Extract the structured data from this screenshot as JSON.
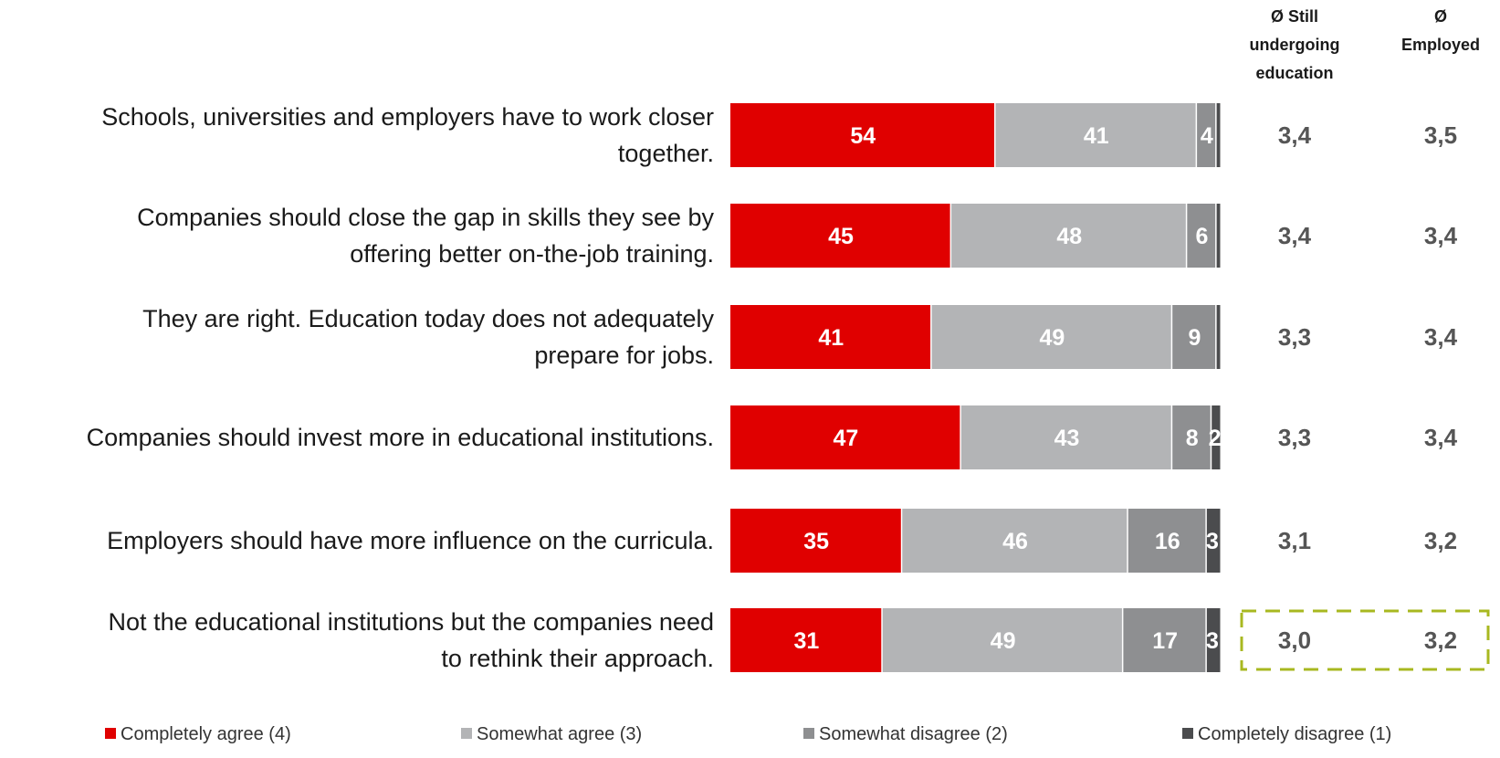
{
  "chart_data": {
    "type": "bar",
    "orientation": "horizontal",
    "stacked": true,
    "unit": "%",
    "categories": [
      [
        "Schools, universities  and employers  have to work closer",
        "together."
      ],
      [
        "Companies  should close the gap in skills they see by",
        "offering better  on-the-job training."
      ],
      [
        "They are right.  Education today does not adequately",
        "prepare  for jobs."
      ],
      [
        "Companies  should invest more in educational institutions."
      ],
      [
        "Employers  should have more influence on the curricula."
      ],
      [
        "Not the educational institutions but the companies need",
        "to rethink their approach."
      ]
    ],
    "series": [
      {
        "name": "Completely agree (4)",
        "color": "#e00000",
        "values": [
          54,
          45,
          41,
          47,
          35,
          31
        ]
      },
      {
        "name": "Somewhat agree (3)",
        "color": "#b3b4b6",
        "values": [
          41,
          48,
          49,
          43,
          46,
          49
        ]
      },
      {
        "name": "Somewhat disagree (2)",
        "color": "#8e8f91",
        "values": [
          4,
          6,
          9,
          8,
          16,
          17
        ]
      },
      {
        "name": "Completely disagree (1)",
        "color": "#4b4c4e",
        "values": [
          1,
          1,
          1,
          2,
          3,
          3
        ]
      }
    ],
    "bar_labels": [
      [
        "54",
        "41",
        "4",
        ""
      ],
      [
        "45",
        "48",
        "6",
        ""
      ],
      [
        "41",
        "49",
        "9",
        ""
      ],
      [
        "47",
        "43",
        "8",
        "2"
      ],
      [
        "35",
        "46",
        "16",
        "3"
      ],
      [
        "31",
        "49",
        "17",
        "3"
      ]
    ],
    "averages": {
      "headers": [
        [
          "Ø Still",
          "undergoing",
          "education"
        ],
        [
          "Ø",
          "Employed"
        ]
      ],
      "still_undergoing_education": [
        "3,4",
        "3,4",
        "3,3",
        "3,3",
        "3,1",
        "3,0"
      ],
      "employed": [
        "3,5",
        "3,4",
        "3,4",
        "3,4",
        "3,2",
        "3,2"
      ]
    },
    "highlight": {
      "row": 5,
      "color": "#a8b820",
      "style": "dashed"
    },
    "legend_position": "bottom",
    "xlim": [
      0,
      100
    ],
    "grid": false
  }
}
